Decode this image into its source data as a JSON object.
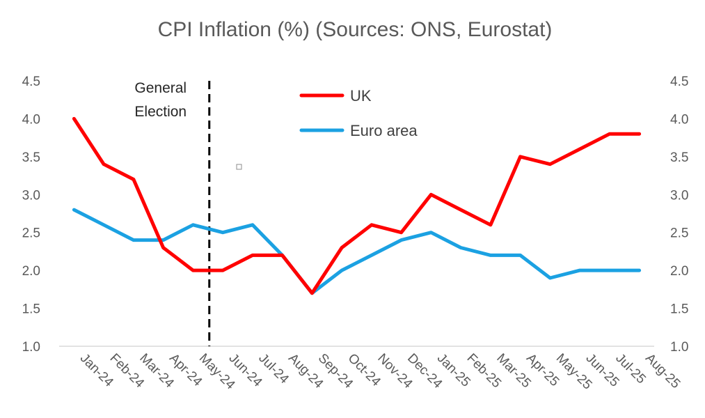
{
  "chart_data": {
    "type": "line",
    "title": "CPI Inflation (%) (Sources: ONS, Eurostat)",
    "categories": [
      "Jan-24",
      "Feb-24",
      "Mar-24",
      "Apr-24",
      "May-24",
      "Jun-24",
      "Jul-24",
      "Aug-24",
      "Sep-24",
      "Oct-24",
      "Nov-24",
      "Dec-24",
      "Jan-25",
      "Feb-25",
      "Mar-25",
      "Apr-25",
      "May-25",
      "Jun-25",
      "Jul-25",
      "Aug-25"
    ],
    "series": [
      {
        "name": "UK",
        "color": "#ff0000",
        "values": [
          4.0,
          3.4,
          3.2,
          2.3,
          2.0,
          2.0,
          2.2,
          2.2,
          1.7,
          2.3,
          2.6,
          2.5,
          3.0,
          2.8,
          2.6,
          3.5,
          3.4,
          3.6,
          3.8,
          3.8
        ]
      },
      {
        "name": "Euro area",
        "color": "#1ba1e2",
        "values": [
          2.8,
          2.6,
          2.4,
          2.4,
          2.6,
          2.5,
          2.6,
          2.2,
          1.7,
          2.0,
          2.2,
          2.4,
          2.5,
          2.3,
          2.2,
          2.2,
          1.9,
          2.0,
          2.0,
          2.0
        ]
      }
    ],
    "ylim": [
      1.0,
      4.5
    ],
    "yticks": [
      "1.0",
      "1.5",
      "2.0",
      "2.5",
      "3.0",
      "3.5",
      "4.0",
      "4.5"
    ],
    "xlabel": "",
    "ylabel": "",
    "legend_position": "top-center",
    "grid": false,
    "annotation": {
      "lines": [
        "General",
        "Election"
      ],
      "between": [
        "May-24",
        "Jun-24"
      ]
    }
  }
}
